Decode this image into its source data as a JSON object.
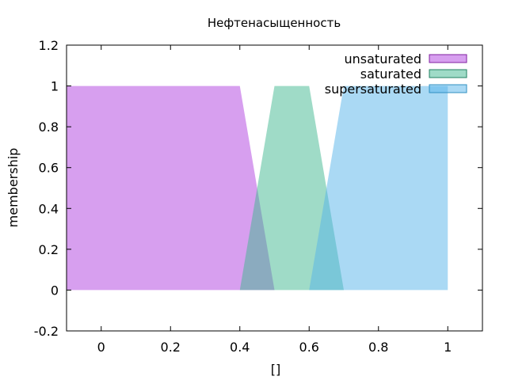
{
  "chart_data": {
    "type": "area",
    "title": "Нефтенасыщенность",
    "xlabel": "[]",
    "ylabel": "membership",
    "xlim": [
      -0.1,
      1.1
    ],
    "ylim": [
      -0.2,
      1.2
    ],
    "x_ticks": [
      "0",
      "0.2",
      "0.4",
      "0.6",
      "0.8",
      "1"
    ],
    "x_tick_values": [
      0,
      0.2,
      0.4,
      0.6,
      0.8,
      1
    ],
    "y_ticks": [
      "-0.2",
      "0",
      "0.2",
      "0.4",
      "0.6",
      "0.8",
      "1",
      "1.2"
    ],
    "y_tick_values": [
      -0.2,
      0,
      0.2,
      0.4,
      0.6,
      0.8,
      1,
      1.2
    ],
    "grid": false,
    "legend_position": "top-right",
    "series": [
      {
        "name": "unsaturated",
        "color": "#b040e0",
        "edge_color": "#8020a0",
        "x": [
          -0.1,
          0.4,
          0.5
        ],
        "y": [
          1,
          1,
          0
        ]
      },
      {
        "name": "saturated",
        "color": "#40b890",
        "edge_color": "#208060",
        "x": [
          0.4,
          0.5,
          0.6,
          0.7
        ],
        "y": [
          0,
          1,
          1,
          0
        ]
      },
      {
        "name": "supersaturated",
        "color": "#56b4e9",
        "edge_color": "#3090c0",
        "x": [
          0.6,
          0.7,
          1.0,
          1.0
        ],
        "y": [
          0,
          1,
          1,
          0
        ]
      }
    ]
  }
}
